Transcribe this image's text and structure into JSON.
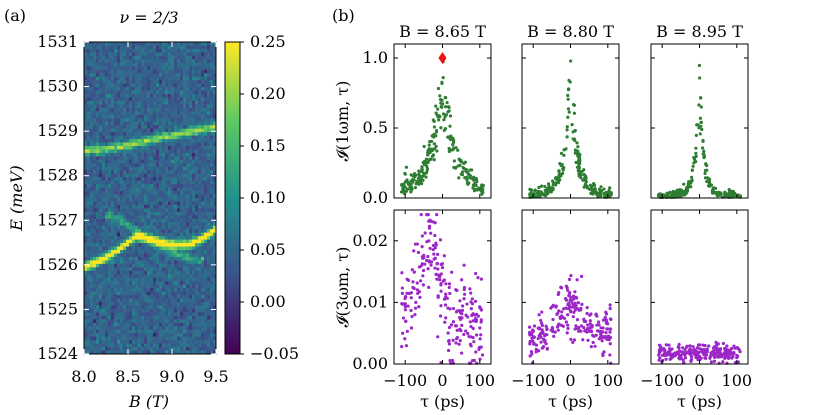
{
  "chart_data": [
    {
      "type": "heatmap",
      "panel_label": "(a)",
      "title": "ν = 2/3",
      "xlabel": "B (T)",
      "ylabel": "E (meV)",
      "xlim": [
        8.0,
        9.5
      ],
      "ylim": [
        1524,
        1531
      ],
      "xticks": [
        "8.0",
        "8.5",
        "9.0",
        "9.5"
      ],
      "yticks": [
        "1524",
        "1525",
        "1526",
        "1527",
        "1528",
        "1529",
        "1530",
        "1531"
      ],
      "colorbar": {
        "range": [
          -0.05,
          0.25
        ],
        "ticks": [
          "0.25",
          "0.20",
          "0.15",
          "0.10",
          "0.05",
          "0.00",
          "−0.05"
        ],
        "colormap": "viridis"
      },
      "features": [
        {
          "name": "upper branch",
          "B": [
            8.0,
            8.25,
            8.5,
            8.75,
            9.0,
            9.25,
            9.5
          ],
          "E": [
            1528.55,
            1528.6,
            1528.68,
            1528.8,
            1528.9,
            1529.0,
            1529.1
          ],
          "intensity": 0.16
        },
        {
          "name": "lower branch",
          "B": [
            8.0,
            8.2,
            8.4,
            8.6,
            8.8,
            9.0,
            9.2,
            9.35,
            9.5
          ],
          "E": [
            1525.95,
            1526.1,
            1526.35,
            1526.65,
            1526.55,
            1526.45,
            1526.45,
            1526.6,
            1526.8
          ],
          "intensity": 0.25
        },
        {
          "name": "faint crossing branch",
          "B": [
            8.3,
            8.5,
            8.7,
            8.9,
            9.1,
            9.3
          ],
          "E": [
            1527.1,
            1526.9,
            1526.6,
            1526.35,
            1526.2,
            1526.1
          ],
          "intensity": 0.08
        }
      ]
    },
    {
      "type": "scatter",
      "panel_label": "(b)",
      "columns": [
        "B = 8.65 T",
        "B = 8.80 T",
        "B = 8.95 T"
      ],
      "xlabel": "τ (ps)",
      "xlim": [
        -130,
        130
      ],
      "xticks": [
        "−100",
        "0",
        "100"
      ],
      "rows": [
        {
          "ylabel": "𝓘(1ωm, τ)",
          "ylim": [
            0,
            1.1
          ],
          "yticks": [
            "0.0",
            "0.5",
            "1.0"
          ],
          "color": "#2e7d32"
        },
        {
          "ylabel": "𝓘(3ωm, τ)",
          "ylim": [
            0,
            0.025
          ],
          "yticks": [
            "0.00",
            "0.01",
            "0.02"
          ],
          "color": "#9c27c8"
        }
      ],
      "panels": [
        {
          "row": 0,
          "col": 0,
          "shape": "exponential",
          "peak": 0.85,
          "width_ps": 35,
          "noise": 0.12
        },
        {
          "row": 0,
          "col": 1,
          "shape": "exponential",
          "peak": 0.95,
          "width_ps": 18,
          "noise": 0.08
        },
        {
          "row": 0,
          "col": 2,
          "shape": "exponential",
          "peak": 0.85,
          "width_ps": 12,
          "noise": 0.06
        },
        {
          "row": 1,
          "col": 0,
          "shape": "asymmetric",
          "peak": 0.021,
          "center_ps": -40,
          "noise": 0.004
        },
        {
          "row": 1,
          "col": 1,
          "shape": "gaussian",
          "peak": 0.0085,
          "width_ps": 55,
          "noise": 0.0022
        },
        {
          "row": 1,
          "col": 2,
          "shape": "flat",
          "peak": 0.0017,
          "noise": 0.0007
        }
      ],
      "marker": {
        "row": 0,
        "col": 0,
        "x": 0,
        "y": 1.0,
        "shape": "diamond",
        "color": "#ee1111"
      }
    }
  ]
}
